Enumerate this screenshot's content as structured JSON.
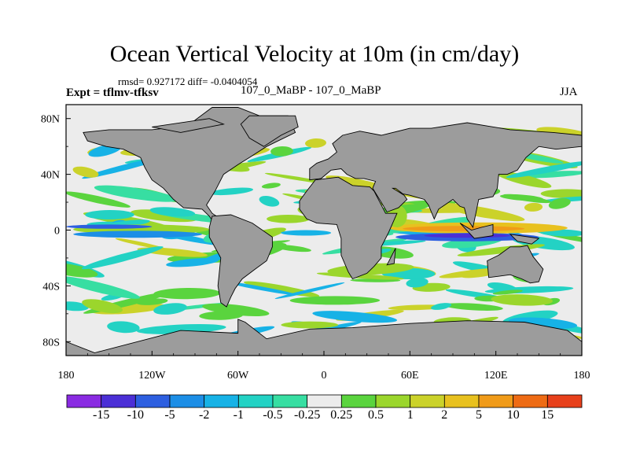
{
  "title": "Ocean Vertical Velocity at 10m (in cm/day)",
  "stats": "rmsd= 0.927172 diff= -0.0404054",
  "left_label": "Expt = tflmv-tfksv",
  "center_label": "107_0_MaBP - 107_0_MaBP",
  "right_label": "JJA",
  "colors": {
    "land": "#9c9c9c",
    "neutral": "#ececec",
    "colorbar": [
      "#8a2be2",
      "#4b2fd6",
      "#2d5fe0",
      "#1c8ee6",
      "#17b2e6",
      "#23d2c4",
      "#37dea2",
      "#ececec",
      "#5ad43e",
      "#9bd62c",
      "#cbd22a",
      "#e8c11f",
      "#f09b19",
      "#ee6b14",
      "#e7401b"
    ]
  },
  "chart_data": {
    "type": "filled-contour-map",
    "variable": "Ocean Vertical Velocity at 10m",
    "units": "cm/day",
    "season": "JJA",
    "x_ticks": [
      "180",
      "120W",
      "60W",
      "0",
      "60E",
      "120E",
      "180"
    ],
    "x_range": [
      -180,
      180
    ],
    "y_ticks": [
      "80N",
      "40N",
      "0",
      "40S",
      "80S"
    ],
    "y_range": [
      -90,
      90
    ],
    "colorbar_levels": [
      "-15",
      "-10",
      "-5",
      "-2",
      "-1",
      "-0.5",
      "-0.25",
      "0.25",
      "0.5",
      "1",
      "2",
      "5",
      "10",
      "15"
    ],
    "land": [
      [
        [
          -78,
          88
        ],
        [
          -60,
          88
        ],
        [
          -45,
          82
        ],
        [
          -25,
          82
        ],
        [
          -20,
          70
        ],
        [
          -40,
          60
        ],
        [
          -52,
          52
        ],
        [
          -60,
          47
        ],
        [
          -70,
          40
        ],
        [
          -76,
          28
        ],
        [
          -82,
          18
        ],
        [
          -78,
          12
        ],
        [
          -72,
          8
        ],
        [
          -76,
          4
        ],
        [
          -80,
          10
        ],
        [
          -85,
          15
        ],
        [
          -98,
          16
        ],
        [
          -105,
          22
        ],
        [
          -112,
          30
        ],
        [
          -120,
          36
        ],
        [
          -125,
          45
        ],
        [
          -128,
          52
        ],
        [
          -140,
          58
        ],
        [
          -152,
          60
        ],
        [
          -165,
          64
        ],
        [
          -168,
          70
        ],
        [
          -150,
          72
        ],
        [
          -120,
          72
        ],
        [
          -95,
          75
        ],
        [
          -78,
          88
        ]
      ],
      [
        [
          -78,
          10
        ],
        [
          -65,
          11
        ],
        [
          -50,
          5
        ],
        [
          -36,
          -5
        ],
        [
          -36,
          -12
        ],
        [
          -40,
          -22
        ],
        [
          -48,
          -28
        ],
        [
          -57,
          -35
        ],
        [
          -62,
          -42
        ],
        [
          -65,
          -48
        ],
        [
          -68,
          -55
        ],
        [
          -72,
          -52
        ],
        [
          -74,
          -40
        ],
        [
          -72,
          -20
        ],
        [
          -80,
          -5
        ],
        [
          -80,
          2
        ],
        [
          -78,
          10
        ]
      ],
      [
        [
          -6,
          36
        ],
        [
          10,
          38
        ],
        [
          20,
          32
        ],
        [
          32,
          31
        ],
        [
          35,
          28
        ],
        [
          43,
          12
        ],
        [
          51,
          12
        ],
        [
          45,
          -2
        ],
        [
          40,
          -12
        ],
        [
          40,
          -20
        ],
        [
          35,
          -26
        ],
        [
          30,
          -31
        ],
        [
          20,
          -35
        ],
        [
          17,
          -30
        ],
        [
          12,
          -18
        ],
        [
          12,
          -6
        ],
        [
          9,
          4
        ],
        [
          -5,
          5
        ],
        [
          -12,
          8
        ],
        [
          -17,
          15
        ],
        [
          -17,
          21
        ],
        [
          -12,
          28
        ],
        [
          -6,
          36
        ]
      ],
      [
        [
          -10,
          36
        ],
        [
          -10,
          44
        ],
        [
          -5,
          48
        ],
        [
          3,
          51
        ],
        [
          9,
          56
        ],
        [
          6,
          62
        ],
        [
          13,
          68
        ],
        [
          25,
          71
        ],
        [
          40,
          68
        ],
        [
          60,
          73
        ],
        [
          75,
          73
        ],
        [
          100,
          77
        ],
        [
          130,
          72
        ],
        [
          160,
          70
        ],
        [
          180,
          68
        ],
        [
          180,
          60
        ],
        [
          162,
          58
        ],
        [
          150,
          60
        ],
        [
          141,
          52
        ],
        [
          135,
          43
        ],
        [
          128,
          40
        ],
        [
          122,
          40
        ],
        [
          121,
          30
        ],
        [
          118,
          24
        ],
        [
          108,
          22
        ],
        [
          106,
          12
        ],
        [
          104,
          2
        ],
        [
          100,
          8
        ],
        [
          98,
          16
        ],
        [
          95,
          17
        ],
        [
          90,
          22
        ],
        [
          80,
          15
        ],
        [
          77,
          8
        ],
        [
          73,
          18
        ],
        [
          70,
          22
        ],
        [
          60,
          25
        ],
        [
          55,
          26
        ],
        [
          50,
          30
        ],
        [
          48,
          30
        ],
        [
          56,
          25
        ],
        [
          58,
          22
        ],
        [
          52,
          16
        ],
        [
          44,
          13
        ],
        [
          40,
          20
        ],
        [
          34,
          30
        ],
        [
          36,
          35
        ],
        [
          28,
          37
        ],
        [
          22,
          37
        ],
        [
          16,
          40
        ],
        [
          12,
          44
        ],
        [
          5,
          43
        ],
        [
          -2,
          37
        ],
        [
          -10,
          36
        ]
      ],
      [
        [
          -160,
          -88
        ],
        [
          -100,
          -72
        ],
        [
          -60,
          -74
        ],
        [
          -60,
          -64
        ],
        [
          -55,
          -66
        ],
        [
          -40,
          -78
        ],
        [
          -10,
          -71
        ],
        [
          20,
          -70
        ],
        [
          60,
          -67
        ],
        [
          100,
          -65
        ],
        [
          140,
          -66
        ],
        [
          170,
          -72
        ],
        [
          180,
          -80
        ],
        [
          180,
          -90
        ],
        [
          -180,
          -90
        ],
        [
          -180,
          -80
        ],
        [
          -160,
          -88
        ]
      ],
      [
        [
          114,
          -22
        ],
        [
          122,
          -18
        ],
        [
          130,
          -12
        ],
        [
          137,
          -12
        ],
        [
          142,
          -11
        ],
        [
          146,
          -19
        ],
        [
          153,
          -28
        ],
        [
          150,
          -37
        ],
        [
          144,
          -38
        ],
        [
          138,
          -35
        ],
        [
          130,
          -32
        ],
        [
          115,
          -34
        ],
        [
          114,
          -22
        ]
      ],
      [
        [
          44,
          -25
        ],
        [
          49,
          -15
        ],
        [
          50,
          -13
        ],
        [
          49,
          -24
        ],
        [
          44,
          -25
        ]
      ],
      [
        [
          -52,
          82
        ],
        [
          -20,
          82
        ],
        [
          -18,
          74
        ],
        [
          -30,
          68
        ],
        [
          -42,
          60
        ],
        [
          -52,
          66
        ],
        [
          -58,
          76
        ],
        [
          -52,
          82
        ]
      ],
      [
        [
          95,
          5
        ],
        [
          105,
          -6
        ],
        [
          118,
          -4
        ],
        [
          118,
          4
        ],
        [
          110,
          2
        ],
        [
          103,
          0
        ],
        [
          95,
          5
        ]
      ],
      [
        [
          130,
          -3
        ],
        [
          150,
          -6
        ],
        [
          145,
          -10
        ],
        [
          135,
          -8
        ],
        [
          130,
          -3
        ]
      ],
      [
        [
          -120,
          74
        ],
        [
          -80,
          80
        ],
        [
          -70,
          76
        ],
        [
          -100,
          70
        ],
        [
          -120,
          74
        ]
      ]
    ],
    "field_features": [
      {
        "kind": "equatorial_upwelling_positive",
        "lon": [
          -170,
          -80
        ],
        "lat": [
          -1,
          2
        ],
        "level": "1"
      },
      {
        "kind": "equatorial_downwelling",
        "lon": [
          -170,
          -85
        ],
        "lat": [
          -5,
          -1
        ],
        "level": "-2"
      },
      {
        "kind": "indian_ocean_positive",
        "lon": [
          48,
          160
        ],
        "lat": [
          -1,
          3
        ],
        "level": "5"
      },
      {
        "kind": "indian_ocean_negative",
        "lon": [
          50,
          150
        ],
        "lat": [
          -8,
          -2
        ],
        "level": "-5"
      },
      {
        "kind": "arabian_coastal_upwelling",
        "lon": [
          50,
          58
        ],
        "lat": [
          8,
          18
        ],
        "level": "2"
      }
    ]
  }
}
